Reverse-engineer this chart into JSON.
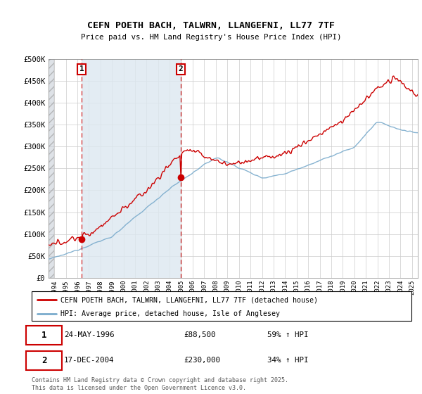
{
  "title": "CEFN POETH BACH, TALWRN, LLANGEFNI, LL77 7TF",
  "subtitle": "Price paid vs. HM Land Registry's House Price Index (HPI)",
  "legend_line1": "CEFN POETH BACH, TALWRN, LLANGEFNI, LL77 7TF (detached house)",
  "legend_line2": "HPI: Average price, detached house, Isle of Anglesey",
  "annotation1_date": "24-MAY-1996",
  "annotation1_price": "£88,500",
  "annotation1_hpi": "59% ↑ HPI",
  "annotation2_date": "17-DEC-2004",
  "annotation2_price": "£230,000",
  "annotation2_hpi": "34% ↑ HPI",
  "footer": "Contains HM Land Registry data © Crown copyright and database right 2025.\nThis data is licensed under the Open Government Licence v3.0.",
  "red_color": "#cc0000",
  "blue_color": "#7aabcc",
  "hatch_color": "#c8d4e0",
  "shade_color": "#dde8f0",
  "background_color": "#ffffff",
  "marker1_x": 1996.38,
  "marker1_y": 88500,
  "marker2_x": 2004.96,
  "marker2_y": 230000,
  "ylim": [
    0,
    500000
  ],
  "xlim_start": 1993.5,
  "xlim_end": 2025.5
}
